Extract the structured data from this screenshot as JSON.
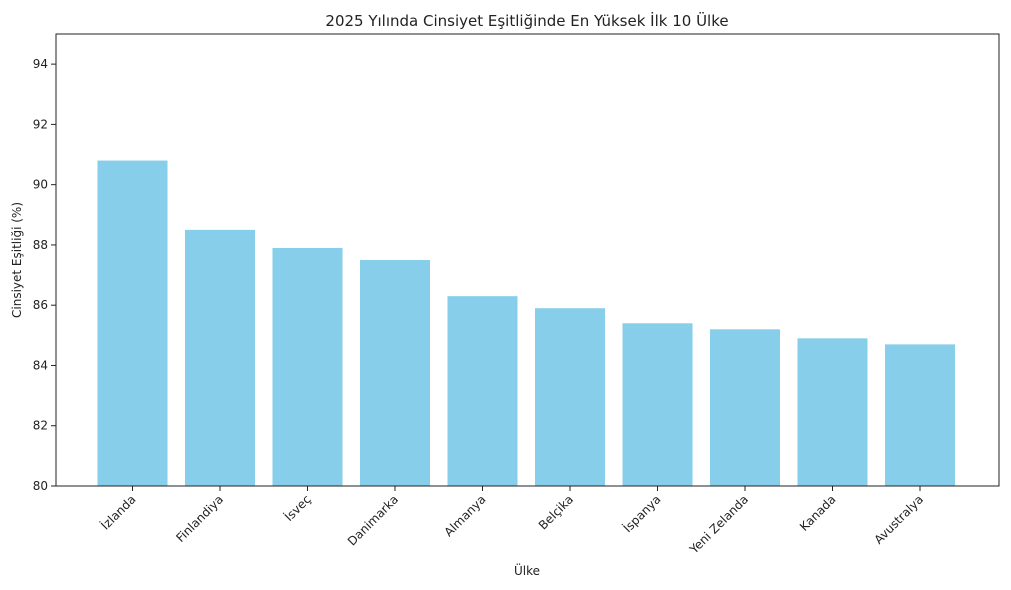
{
  "chart_data": {
    "type": "bar",
    "title": "2025 Yılında Cinsiyet Eşitliğinde En Yüksek İlk 10 Ülke",
    "xlabel": "Ülke",
    "ylabel": "Cinsiyet Eşitliği (%)",
    "categories": [
      "İzlanda",
      "Finlandiya",
      "İsveç",
      "Danimarka",
      "Almanya",
      "Belçika",
      "İspanya",
      "Yeni Zelanda",
      "Kanada",
      "Avustralya"
    ],
    "values": [
      90.8,
      88.5,
      87.9,
      87.5,
      86.3,
      85.9,
      85.4,
      85.2,
      84.9,
      84.7
    ],
    "ylim": [
      80,
      95
    ],
    "yticks": [
      80,
      82,
      84,
      86,
      88,
      90,
      92,
      94
    ],
    "grid": false,
    "bar_color": "#87CEEB"
  }
}
